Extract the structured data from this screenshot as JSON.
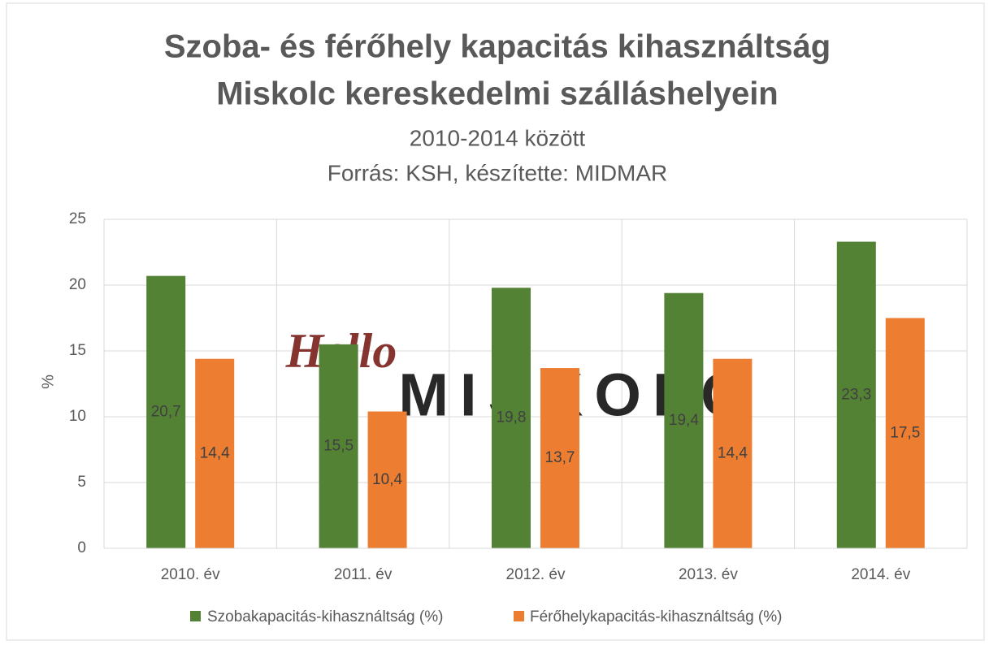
{
  "chart_data": {
    "type": "bar",
    "title": [
      "Szoba- és férőhely kapacitás kihasználtság",
      "Miskolc kereskedelmi szálláshelyein"
    ],
    "subtitle": [
      "2010-2014 között",
      "Forrás: KSH, készítette: MIDMAR"
    ],
    "watermark": [
      "Hello",
      "MISKOLC"
    ],
    "y_label": "%",
    "categories": [
      "2010. év",
      "2011. év",
      "2012. év",
      "2013. év",
      "2014. év"
    ],
    "series": [
      {
        "name": "Szobakapacitás-kihasználtság (%)",
        "color": "#548235",
        "values": [
          20.7,
          15.5,
          19.8,
          19.4,
          23.3
        ],
        "value_labels": [
          "20,7",
          "15,5",
          "19,8",
          "19,4",
          "23,3"
        ]
      },
      {
        "name": "Férőhelykapacitás-kihasználtság (%)",
        "color": "#ed7d31",
        "values": [
          14.4,
          10.4,
          13.7,
          14.4,
          17.5
        ],
        "value_labels": [
          "14,4",
          "10,4",
          "13,7",
          "14,4",
          "17,5"
        ]
      }
    ],
    "ylim": [
      0,
      25
    ],
    "yticks": [
      0,
      5,
      10,
      15,
      20,
      25
    ],
    "grid": true,
    "legend": "bottom"
  }
}
